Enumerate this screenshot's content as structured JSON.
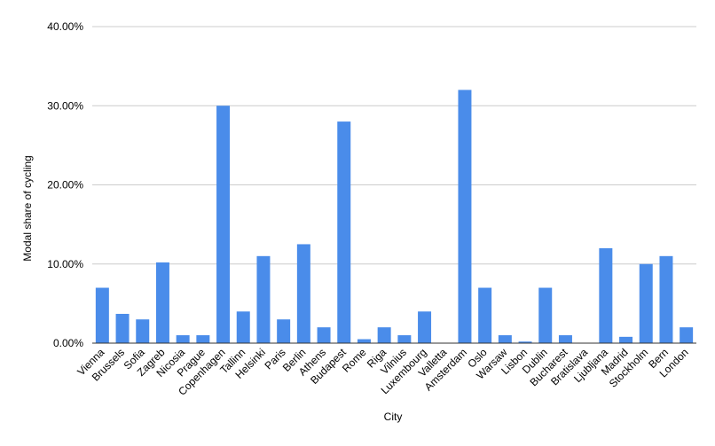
{
  "chart_data": {
    "type": "bar",
    "title": "",
    "xlabel": "City",
    "ylabel": "Modal share of cycling",
    "ylim": [
      0,
      40
    ],
    "yticks": [
      "0.00%",
      "10.00%",
      "20.00%",
      "30.00%",
      "40.00%"
    ],
    "grid": true,
    "legend": "none",
    "bar_color": "#4a8cea",
    "categories": [
      "Vienna",
      "Brussels",
      "Sofia",
      "Zagreb",
      "Nicosia",
      "Prague",
      "Copenhagen",
      "Tallinn",
      "Helsinki",
      "Paris",
      "Berlin",
      "Athens",
      "Budapest",
      "Rome",
      "Riga",
      "Vilnius",
      "Luxembourg",
      "Valletta",
      "Amsterdam",
      "Oslo",
      "Warsaw",
      "Lisbon",
      "Dublin",
      "Bucharest",
      "Bratislava",
      "Ljubljana",
      "Madrid",
      "Stockholm",
      "Bern",
      "London"
    ],
    "values": [
      7,
      3.7,
      3,
      10.2,
      1,
      1,
      30,
      4,
      11,
      3,
      12.5,
      2,
      28,
      0.5,
      2,
      1,
      4,
      0,
      32,
      7,
      1,
      0.2,
      7,
      1,
      0,
      12,
      0.8,
      10,
      11,
      2
    ]
  }
}
